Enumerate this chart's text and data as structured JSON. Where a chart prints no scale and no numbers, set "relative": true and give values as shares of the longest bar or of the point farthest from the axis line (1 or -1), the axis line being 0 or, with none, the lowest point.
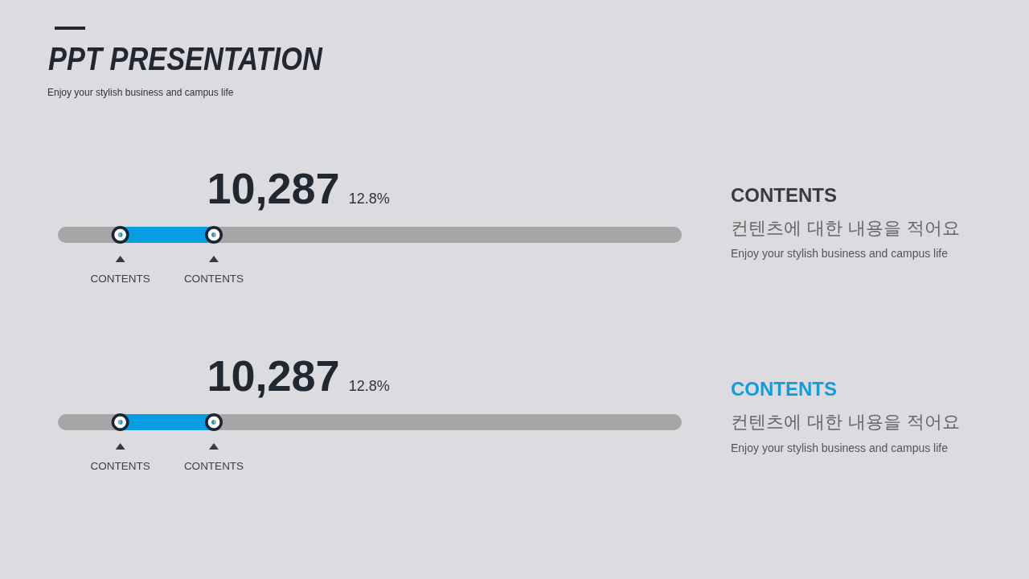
{
  "chart_data": [
    {
      "type": "bar",
      "title": "PPT PRESENTATION",
      "subtitle": "Enjoy your stylish business and campus life",
      "orientation": "horizontal",
      "stacked": true,
      "relative": true,
      "categories": [
        null
      ],
      "series": [
        {
          "color": "#a6a6a6",
          "values": [
            0.1
          ]
        },
        {
          "color": "#069ee0",
          "values": [
            0.15
          ]
        },
        {
          "color": "#a6a6a6",
          "values": [
            0.75
          ]
        }
      ],
      "annotations": [
        "10,287",
        "12.8%",
        "CONTENTS",
        "CONTENTS"
      ]
    },
    {
      "type": "other",
      "title": "CONTENTS",
      "subtitle": "컨텐츠에 대한 내용을 적어요",
      "annotations": [
        "Enjoy your stylish business and campus life"
      ],
      "color": "#3b3b3d"
    },
    {
      "type": "bar",
      "orientation": "horizontal",
      "stacked": true,
      "relative": true,
      "categories": [
        null
      ],
      "series": [
        {
          "color": "#a6a6a6",
          "values": [
            0.1
          ]
        },
        {
          "color": "#069ee0",
          "values": [
            0.15
          ]
        },
        {
          "color": "#a6a6a6",
          "values": [
            0.75
          ]
        }
      ],
      "annotations": [
        "10,287",
        "12.8%",
        "CONTENTS",
        "CONTENTS"
      ]
    },
    {
      "type": "other",
      "title": "CONTENTS",
      "subtitle": "컨텐츠에 대한 내용을 적어요",
      "annotations": [
        "Enjoy your stylish business and campus life"
      ],
      "color": "#0f9ddb"
    }
  ]
}
